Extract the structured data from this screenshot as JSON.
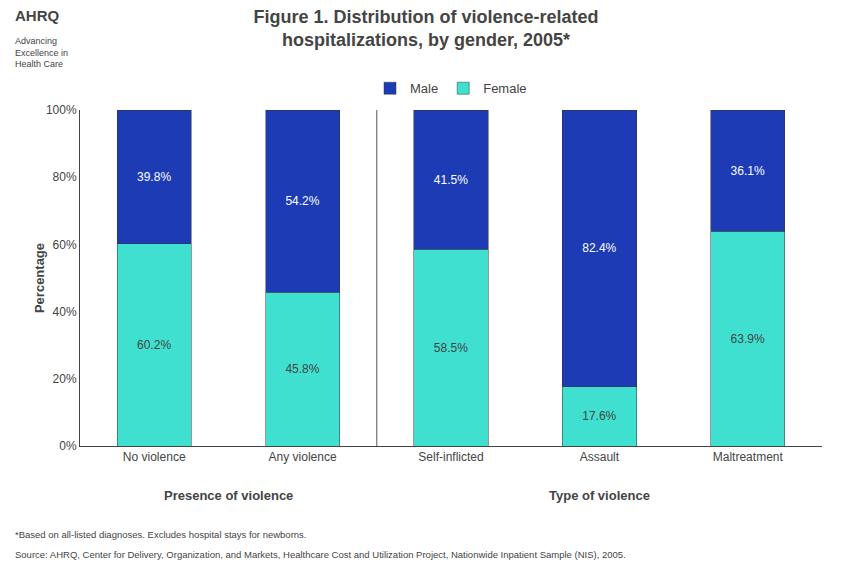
{
  "chart_data": {
    "type": "bar",
    "title": "Figure 1. Distribution of violence-related\nhospitalizations, by gender, 2005*",
    "categories": [
      "No violence",
      "Any violence",
      "Self-inflicted",
      "Assault",
      "Maltreatment"
    ],
    "series": [
      {
        "name": "Female",
        "color": "#40E0D0",
        "values": [
          60.2,
          45.8,
          58.5,
          17.6,
          63.9
        ],
        "value_labels": [
          "60.2%",
          "45.8%",
          "58.5%",
          "17.6%",
          "63.9%"
        ]
      },
      {
        "name": "Male",
        "color": "#1C3BB5",
        "values": [
          39.8,
          54.2,
          41.5,
          82.4,
          36.1
        ],
        "value_labels": [
          "39.8%",
          "54.2%",
          "41.5%",
          "82.4%",
          "36.1%"
        ]
      }
    ],
    "stacked": true,
    "data_labels": true,
    "ylabel": "Percentage",
    "ylim": [
      0,
      100
    ],
    "yticks": [
      {
        "value": 0,
        "label": "0%"
      },
      {
        "value": 20,
        "label": "20%"
      },
      {
        "value": 40,
        "label": "40%"
      },
      {
        "value": 60,
        "label": "60%"
      },
      {
        "value": 80,
        "label": "80%"
      },
      {
        "value": 100,
        "label": "100%"
      }
    ],
    "grid": false,
    "legend": "top",
    "annotations": [
      "Presence of violence",
      "Type of violence",
      "AHRQ",
      "Advancing\nExcellence in\nHealth Care",
      "*Based on all-listed diagnoses. Excludes hospital stays for newborns.",
      "Source: AHRQ, Center for Delivery, Organization, and Markets, Healthcare Cost and Utilization Project, Nationwide Inpatient Sample (NIS), 2005."
    ]
  }
}
